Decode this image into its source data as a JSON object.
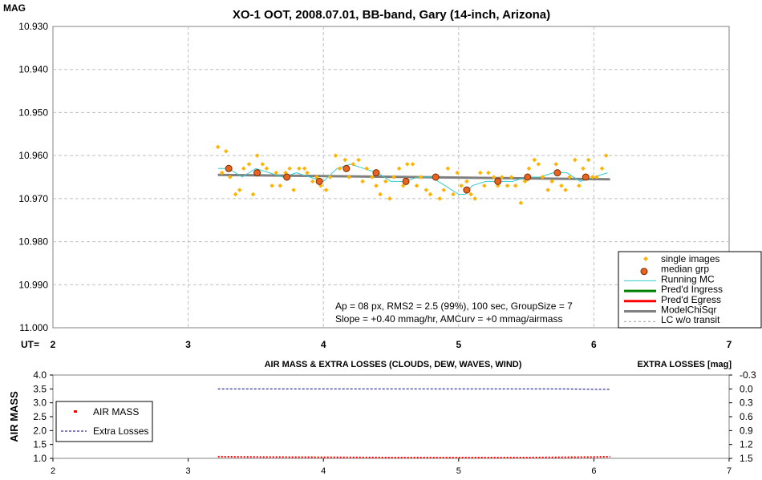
{
  "chart_data": [
    {
      "type": "scatter",
      "title": "XO-1 OOT, 2008.07.01, BB-band, Gary (14-inch, Arizona)",
      "ylabel": "MAG",
      "xlabel": "UT=",
      "xlim": [
        2,
        7
      ],
      "ylim": [
        10.93,
        11.0
      ],
      "y_inverted": true,
      "x_ticks": [
        "2",
        "3",
        "4",
        "5",
        "6",
        "7"
      ],
      "y_ticks": [
        "10.930",
        "10.940",
        "10.950",
        "10.960",
        "10.970",
        "10.980",
        "10.990",
        "11.000"
      ],
      "grid": true,
      "legend_position": "bottom-right",
      "legend": [
        {
          "label": "single images",
          "color": "#ffb300",
          "marker": "diamond"
        },
        {
          "label": "median grp",
          "color": "#e8641e",
          "marker": "circle"
        },
        {
          "label": "Running MC",
          "color": "#33cccc",
          "marker": "line"
        },
        {
          "label": "Pred'd Ingress",
          "color": "#008000",
          "marker": "line"
        },
        {
          "label": "Pred'd Egress",
          "color": "#ff0000",
          "marker": "line"
        },
        {
          "label": "ModelChiSqr",
          "color": "#808080",
          "marker": "line"
        },
        {
          "label": "LC w/o transit",
          "color": "#999999",
          "marker": "dashed"
        }
      ],
      "annotation_lines": [
        "Ap = 08 px, RMS2 = 2.5 (99%), 100 sec, GroupSize = 7",
        "Slope = +0.40 mmag/hr, AMCurv = +0 mmag/airmass"
      ],
      "series": [
        {
          "name": "single images",
          "x": [
            3.22,
            3.25,
            3.28,
            3.31,
            3.35,
            3.38,
            3.41,
            3.45,
            3.48,
            3.51,
            3.55,
            3.58,
            3.62,
            3.65,
            3.68,
            3.72,
            3.75,
            3.78,
            3.82,
            3.86,
            3.88,
            3.92,
            3.95,
            3.98,
            4.02,
            4.05,
            4.09,
            4.12,
            4.16,
            4.19,
            4.22,
            4.26,
            4.29,
            4.32,
            4.36,
            4.39,
            4.42,
            4.46,
            4.49,
            4.52,
            4.56,
            4.59,
            4.62,
            4.66,
            4.69,
            4.72,
            4.76,
            4.79,
            4.82,
            4.86,
            4.89,
            4.92,
            4.96,
            4.99,
            5.02,
            5.06,
            5.09,
            5.12,
            5.16,
            5.19,
            5.22,
            5.26,
            5.29,
            5.32,
            5.36,
            5.39,
            5.42,
            5.46,
            5.49,
            5.52,
            5.56,
            5.59,
            5.62,
            5.66,
            5.69,
            5.72,
            5.76,
            5.79,
            5.82,
            5.86,
            5.89,
            5.92,
            5.96,
            5.99,
            6.02,
            6.06,
            6.09
          ],
          "y": [
            10.958,
            10.964,
            10.959,
            10.965,
            10.969,
            10.968,
            10.963,
            10.962,
            10.969,
            10.96,
            10.962,
            10.963,
            10.967,
            10.964,
            10.967,
            10.964,
            10.963,
            10.968,
            10.963,
            10.963,
            10.964,
            10.966,
            10.965,
            10.967,
            10.968,
            10.965,
            10.96,
            10.963,
            10.961,
            10.965,
            10.962,
            10.961,
            10.966,
            10.963,
            10.965,
            10.967,
            10.969,
            10.966,
            10.97,
            10.965,
            10.963,
            10.967,
            10.962,
            10.962,
            10.967,
            10.965,
            10.968,
            10.969,
            10.965,
            10.97,
            10.968,
            10.963,
            10.969,
            10.964,
            10.967,
            10.966,
            10.969,
            10.97,
            10.964,
            10.967,
            10.964,
            10.965,
            10.967,
            10.965,
            10.967,
            10.965,
            10.967,
            10.971,
            10.966,
            10.963,
            10.961,
            10.962,
            10.965,
            10.968,
            10.966,
            10.962,
            10.967,
            10.968,
            10.965,
            10.961,
            10.967,
            10.963,
            10.961,
            10.965,
            10.965,
            10.963,
            10.96
          ]
        },
        {
          "name": "median grp",
          "x": [
            3.3,
            3.51,
            3.73,
            3.97,
            4.17,
            4.39,
            4.61,
            4.83,
            5.06,
            5.29,
            5.51,
            5.73,
            5.94
          ],
          "y": [
            10.963,
            10.964,
            10.965,
            10.966,
            10.963,
            10.964,
            10.966,
            10.965,
            10.968,
            10.966,
            10.965,
            10.964,
            10.965
          ]
        },
        {
          "name": "Running MC",
          "x": [
            3.22,
            3.3,
            3.4,
            3.5,
            3.6,
            3.7,
            3.8,
            3.9,
            4.0,
            4.1,
            4.2,
            4.3,
            4.4,
            4.5,
            4.6,
            4.7,
            4.8,
            4.9,
            5.0,
            5.05,
            5.1,
            5.2,
            5.3,
            5.4,
            5.5,
            5.6,
            5.7,
            5.8,
            5.9,
            6.0,
            6.1
          ],
          "y": [
            10.963,
            10.963,
            10.965,
            10.963,
            10.964,
            10.965,
            10.964,
            10.965,
            10.966,
            10.963,
            10.962,
            10.963,
            10.964,
            10.966,
            10.966,
            10.965,
            10.965,
            10.967,
            10.969,
            10.969,
            10.967,
            10.966,
            10.966,
            10.966,
            10.965,
            10.965,
            10.964,
            10.964,
            10.966,
            10.965,
            10.964
          ]
        },
        {
          "name": "ModelChiSqr",
          "x": [
            3.22,
            6.12
          ],
          "y": [
            10.9645,
            10.9655
          ]
        },
        {
          "name": "LC w/o transit",
          "x": [
            3.22,
            6.12
          ],
          "y": [
            10.9645,
            10.9655
          ]
        }
      ]
    },
    {
      "type": "line",
      "title": "AIR MASS & EXTRA LOSSES (CLOUDS, DEW, WAVES, WIND)",
      "ylabel": "AIR MASS",
      "y2label": "EXTRA LOSSES [mag]",
      "xlim": [
        2,
        7
      ],
      "ylim": [
        1.0,
        4.0
      ],
      "y2lim": [
        -0.3,
        1.5
      ],
      "y2_inverted": true,
      "x_ticks": [
        "2",
        "3",
        "4",
        "5",
        "6",
        "7"
      ],
      "y_ticks": [
        "1.0",
        "1.5",
        "2.0",
        "2.5",
        "3.0",
        "3.5",
        "4.0"
      ],
      "y2_ticks": [
        "-0.3",
        "0.0",
        "0.3",
        "0.6",
        "0.9",
        "1.2",
        "1.5"
      ],
      "legend_position": "left",
      "legend": [
        {
          "label": "AIR MASS",
          "color": "#ff0000"
        },
        {
          "label": "Extra Losses",
          "color": "#000080"
        }
      ],
      "series": [
        {
          "name": "AIR MASS",
          "axis": "left",
          "x": [
            3.22,
            3.5,
            4.0,
            4.5,
            5.0,
            5.5,
            6.0,
            6.12
          ],
          "y": [
            1.06,
            1.05,
            1.04,
            1.03,
            1.03,
            1.03,
            1.05,
            1.06
          ]
        },
        {
          "name": "Extra Losses",
          "axis": "right",
          "x": [
            3.22,
            3.5,
            4.0,
            4.5,
            5.0,
            5.5,
            5.8,
            6.0,
            6.12
          ],
          "y": [
            0.0,
            0.0,
            0.0,
            0.0,
            0.0,
            0.0,
            0.0,
            0.01,
            0.01
          ]
        }
      ]
    }
  ]
}
